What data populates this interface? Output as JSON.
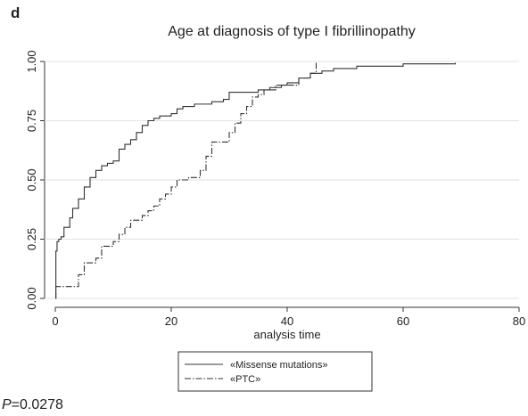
{
  "panel_label": "d",
  "chart_data": {
    "type": "step",
    "title": "Age at diagnosis of type I fibrillinopathy",
    "x_label": "analysis time",
    "xlim": [
      0,
      80
    ],
    "xticks": [
      0,
      20,
      40,
      60,
      80
    ],
    "ylim": [
      0,
      1
    ],
    "yticks": [
      {
        "value": 0,
        "label": "0.00"
      },
      {
        "value": 0.25,
        "label": "0.25"
      },
      {
        "value": 0.5,
        "label": "0.50"
      },
      {
        "value": 0.75,
        "label": "0.75"
      },
      {
        "value": 1,
        "label": "1.00"
      }
    ],
    "grid": true,
    "series": [
      {
        "name": "«Missense mutations»",
        "color": "#333333",
        "dash": "none",
        "x": [
          0,
          0.1,
          0.3,
          0.6,
          1,
          1.5,
          2.5,
          3,
          4,
          5,
          6,
          7,
          8,
          9,
          10,
          11,
          12,
          13,
          14,
          15,
          16,
          17,
          18,
          20,
          21,
          22,
          24,
          27,
          29,
          30,
          35,
          37,
          39,
          40,
          42,
          44,
          46,
          48,
          52,
          60,
          69
        ],
        "values": [
          0,
          0.2,
          0.24,
          0.25,
          0.26,
          0.3,
          0.34,
          0.38,
          0.42,
          0.47,
          0.51,
          0.54,
          0.56,
          0.57,
          0.58,
          0.63,
          0.65,
          0.67,
          0.7,
          0.73,
          0.75,
          0.76,
          0.77,
          0.78,
          0.8,
          0.81,
          0.82,
          0.83,
          0.84,
          0.87,
          0.88,
          0.89,
          0.9,
          0.91,
          0.93,
          0.95,
          0.96,
          0.97,
          0.98,
          0.99,
          0.995
        ]
      },
      {
        "name": "«PTC»",
        "color": "#333333",
        "dash": "7 2 1.5 2",
        "x": [
          0,
          0.1,
          4,
          5,
          7,
          8,
          10,
          11,
          12,
          13,
          15,
          16,
          17,
          18,
          19,
          20,
          21,
          23,
          25,
          26,
          27,
          30,
          31,
          32,
          33,
          34,
          35,
          36,
          38,
          42,
          44,
          45
        ],
        "values": [
          0,
          0.05,
          0.1,
          0.15,
          0.17,
          0.22,
          0.24,
          0.27,
          0.3,
          0.33,
          0.35,
          0.37,
          0.39,
          0.42,
          0.44,
          0.47,
          0.5,
          0.51,
          0.54,
          0.6,
          0.66,
          0.7,
          0.74,
          0.78,
          0.81,
          0.85,
          0.86,
          0.88,
          0.9,
          0.93,
          0.95,
          1.0
        ]
      }
    ]
  },
  "annotation": {
    "italic": "P",
    "text": "=0.0278"
  }
}
